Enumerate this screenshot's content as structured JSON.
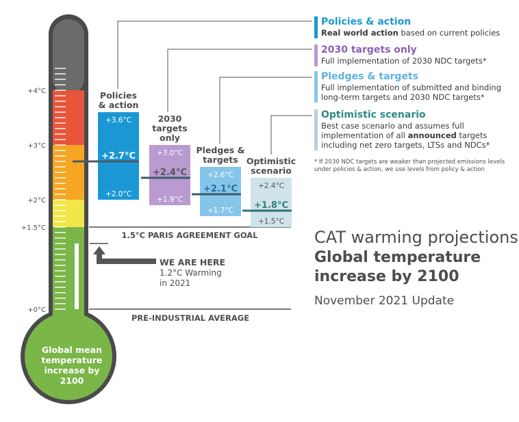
{
  "chart_data": {
    "type": "bar",
    "title": "CAT warming projections",
    "subtitle": "Global temperature increase by 2100",
    "update": "November 2021 Update",
    "thermometer": {
      "label": "Global mean temperature increase by 2100",
      "ticks": [
        "+0°C",
        "+1.5°C",
        "+2°C",
        "+3°C",
        "+4°C"
      ],
      "tick_values": [
        0,
        1.5,
        2,
        3,
        4
      ],
      "current_warming": 1.2,
      "colors": {
        "red": "#e8553b",
        "orange": "#f5a623",
        "yellow": "#f2e648",
        "green": "#7ab648",
        "top": "#6b6b6b",
        "tube": "#545454"
      }
    },
    "reference_lines": [
      {
        "value": 1.5,
        "label": "1.5°C PARIS AGREEMENT GOAL"
      },
      {
        "value": 0,
        "label": "PRE-INDUSTRIAL AVERAGE"
      }
    ],
    "we_are_here": {
      "title": "WE ARE HERE",
      "text": "1.2°C Warming\nin 2021"
    },
    "series": [
      {
        "name": "Policies & action",
        "label_lines": [
          "Policies",
          "& action"
        ],
        "low": 2.0,
        "central": 2.7,
        "high": 3.6,
        "low_label": "+2.0°C",
        "central_label": "+2.7°C",
        "high_label": "+3.6°C",
        "color": "#1b98d4",
        "text_color": "#ffffff"
      },
      {
        "name": "2030 targets only",
        "label_lines": [
          "2030",
          "targets",
          "only"
        ],
        "low": 1.9,
        "central": 2.4,
        "high": 3.0,
        "low_label": "+1.9°C",
        "central_label": "+2.4°C",
        "high_label": "+3.0°C",
        "color": "#b99ad1",
        "text_color": "#ffffff"
      },
      {
        "name": "Pledges & targets",
        "label_lines": [
          "Pledges &",
          "targets"
        ],
        "low": 1.7,
        "central": 2.1,
        "high": 2.6,
        "low_label": "+1.7°C",
        "central_label": "+2.1°C",
        "high_label": "+2.6°C",
        "color": "#86c5ea",
        "text_color": "#ffffff"
      },
      {
        "name": "Optimistic scenario",
        "label_lines": [
          "Optimistic",
          "scenario"
        ],
        "low": 1.5,
        "central": 1.8,
        "high": 2.4,
        "low_label": "+1.5°C",
        "central_label": "+1.8°C",
        "high_label": "+2.4°C",
        "color": "#d0e3ea",
        "text_color": "#555555"
      }
    ],
    "legend": [
      {
        "title": "Policies & action",
        "desc_bold": "Real world action",
        "desc": " based on current policies",
        "color": "#1b98d4",
        "title_color": "#1b98d4"
      },
      {
        "title": "2030 targets only",
        "desc": "Full implementation of 2030 NDC targets*",
        "color": "#b99ad1",
        "title_color": "#8b5fb5"
      },
      {
        "title": "Pledges & targets",
        "desc": "Full implementation of submitted and binding\nlong-term targets and 2030 NDC targets*",
        "color": "#86c5ea",
        "title_color": "#5fb3e0"
      },
      {
        "title": "Optimistic scenario",
        "desc_pre": "Best case scenario and assumes full\nimplementation of all ",
        "desc_bold": "announced",
        "desc_post": " targets\nincluding net zero targets, LTSs and NDCs*",
        "color": "#b7d0d6",
        "title_color": "#2e8a82"
      }
    ],
    "footnote": "* If 2030 NDC targets are weaker than projected emissions levels\nunder policies & action, we use levels from policy & action"
  }
}
